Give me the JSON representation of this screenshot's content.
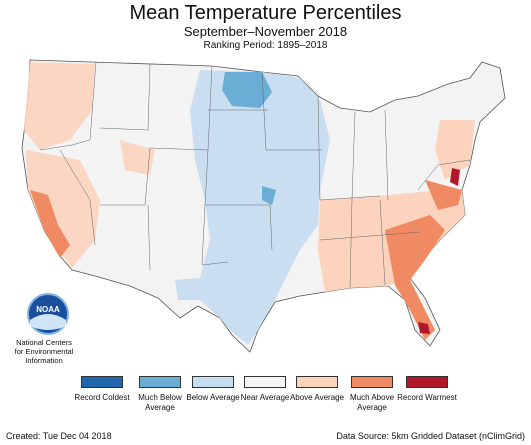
{
  "title": "Mean Temperature Percentiles",
  "subtitle": "September–November 2018",
  "ranking_period": "Ranking Period: 1895–2018",
  "agency": {
    "logo_text": "NOAA",
    "line1": "National Centers",
    "line2": "for Environmental",
    "line3": "Information"
  },
  "legend": [
    {
      "label": "Record Coldest",
      "color": "#2166ac"
    },
    {
      "label": "Much Below Average",
      "color": "#6aaed6"
    },
    {
      "label": "Below Average",
      "color": "#c6dcef"
    },
    {
      "label": "Near Average",
      "color": "#f4f4f4"
    },
    {
      "label": "Above Average",
      "color": "#fdd2bb"
    },
    {
      "label": "Much Above Average",
      "color": "#ef8a62"
    },
    {
      "label": "Record Warmest",
      "color": "#b2182b"
    }
  ],
  "footer": {
    "created": "Created: Tue Dec 04 2018",
    "source": "Data Source: 5km Gridded Dataset (nClimGrid)"
  }
}
